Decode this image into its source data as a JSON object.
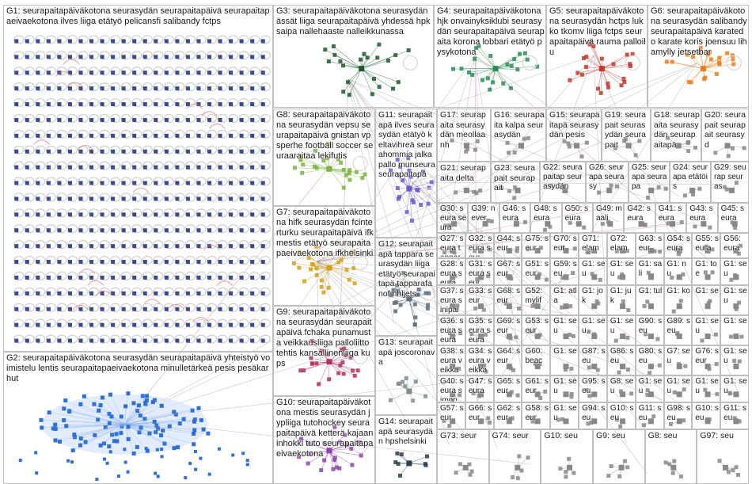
{
  "graph": {
    "groups": [
      {
        "id": "G1",
        "label": "G1: seurapaitapäiväkotona seurasydän seurapaitapäivä seurapaitapaeivaekotona ilves liiga etätyö pelicansfi salibandy fctps",
        "color": "#3a4a8c"
      },
      {
        "id": "G2",
        "label": "G2: seurapaitapäiväkotona seurasydän seurapaitapäivä yhteistyö voimistelu lentis seurapaitapaeivaekotona minulletärkeä pesis pesäkarhut",
        "color": "#2f6fd6"
      },
      {
        "id": "G3",
        "label": "G3: seurapaitapäiväkotona seurasydän ässät liiga seurapaitapäivä yhdessä hpk saipa nallehaaste nalleikkunassa",
        "color": "#1f5a2e"
      },
      {
        "id": "G4",
        "label": "G4: seurapaitapäiväkotona hjk onvainyksiklubi seurasydän seurapaitapäivä seurapaita korona lobbari etätyö pysykotona",
        "color": "#2e8b57"
      },
      {
        "id": "G5",
        "label": "G5: seurapaitapäiväkotona seurasydän hctps lukko tkomv liiga fctps seurapaitapäivä rauma palloilu",
        "color": "#c0392b"
      },
      {
        "id": "G6",
        "label": "G6: seurapaitapäiväkotona seurasydän salibandy seurapaitapäivä karatedo karate koris joensuu lihamylly jetsetbar",
        "color": "#e67e22"
      },
      {
        "id": "G7",
        "label": "G7: seurapaitapäiväkotona hifk seurasydän fcinterturku seurapaitapäivä ifk mestis etätyö seurapaitapaeivaekotona ifkhelsinki",
        "color": "#d4a017"
      },
      {
        "id": "G8",
        "label": "G8: seurapaitapäiväkotona seurasydän vepsu seurapaitapäivä gnistan vpsperhe football soccer seuraaraitaa lekifutis",
        "color": "#7cb342"
      },
      {
        "id": "G9",
        "label": "G9: seurapaitapäiväkotona seurasydän seurapaitapäivä fchaka punamusta veikkausliiga palloliitto tehtis kansallinenliiga kups",
        "color": "#b03060"
      },
      {
        "id": "G10",
        "label": "G10: seurapaitapäiväkotona mestis seurasydän jypliiga tutohockey seurapaitapäivä ketterä kajaaninhokki tuto seurapaitapaeivaekotona",
        "color": "#8e44ad"
      },
      {
        "id": "G11",
        "label": "G11: seurapaitapä ilves seurasydän etätyö keltavihreä seurahommia jalkapallo munseura seurapaitapä",
        "color": "#6a5acd"
      },
      {
        "id": "G12",
        "label": "G12: seurapaitapä tappara seurasydän liiga etätyö seurapaitapä tapparafanof nhljets",
        "color": "#5d6d7e"
      },
      {
        "id": "G13",
        "label": "G13: seurapaitapä joscoronava",
        "color": "#7f8c8d"
      },
      {
        "id": "G14",
        "label": "G14: seurapaitapä seurasydän hpshelsinki",
        "color": "#2c3e50"
      },
      {
        "id": "G15",
        "label": "G15: seurapaitapä seurasydän pesis",
        "color": "#888888"
      },
      {
        "id": "G16",
        "label": "G16: seurapaita kalpa seurasydän",
        "color": "#888888"
      },
      {
        "id": "G17",
        "label": "G17: seurapaita seurasydän meollaanh",
        "color": "#888888"
      },
      {
        "id": "G18",
        "label": "G18: seurapaita seurasydän seurapaitapä",
        "color": "#888888"
      },
      {
        "id": "G19",
        "label": "G19: seurapait seurasydän seurapait",
        "color": "#888888"
      },
      {
        "id": "G20",
        "label": "G20: seurapait seurapait seurasyd",
        "color": "#888888"
      },
      {
        "id": "G21",
        "label": "G21: seurapaita delta",
        "color": "#888888"
      },
      {
        "id": "G22",
        "label": "G22: seurapaitap seurasydän",
        "color": "#888888"
      },
      {
        "id": "G23",
        "label": "G23: seurapait seurapait",
        "color": "#888888"
      },
      {
        "id": "G24",
        "label": "G24: seurapa etätöis",
        "color": "#888888"
      },
      {
        "id": "G25",
        "label": "G25: seurapa seurapa",
        "color": "#888888"
      },
      {
        "id": "G26",
        "label": "G26: seurapa seurasy",
        "color": "#888888"
      },
      {
        "id": "G27",
        "label": "G27: seura tappara seura",
        "color": "#888888"
      },
      {
        "id": "G28",
        "label": "G28: seura seura",
        "color": "#888888"
      },
      {
        "id": "G29",
        "label": "G29: seurap seuras",
        "color": "#888888"
      },
      {
        "id": "G30",
        "label": "G30: seura seura",
        "color": "#888888"
      },
      {
        "id": "G31",
        "label": "G31: seura seur",
        "color": "#888888"
      },
      {
        "id": "G32",
        "label": "G32: seura seur",
        "color": "#888888"
      },
      {
        "id": "G33",
        "label": "G33: seur",
        "color": "#888888"
      },
      {
        "id": "G34",
        "label": "G34: seura veikka",
        "color": "#888888"
      },
      {
        "id": "G35",
        "label": "G35: seura seura",
        "color": "#888888"
      },
      {
        "id": "G36",
        "label": "G36: seura seura",
        "color": "#888888"
      },
      {
        "id": "G37",
        "label": "G37: seura sinipai",
        "color": "#888888"
      },
      {
        "id": "G38",
        "label": "G38: seura veikka",
        "color": "#888888"
      },
      {
        "id": "G39",
        "label": "G39: never",
        "color": "#888888"
      },
      {
        "id": "G40",
        "label": "G40: seura simon",
        "color": "#888888"
      },
      {
        "id": "G41",
        "label": "G41: seura",
        "color": "#888888"
      },
      {
        "id": "G42",
        "label": "G42: seura",
        "color": "#888888"
      },
      {
        "id": "G43",
        "label": "G43: seura",
        "color": "#888888"
      },
      {
        "id": "G44",
        "label": "G44: seur",
        "color": "#888888"
      },
      {
        "id": "G45",
        "label": "G45: seura",
        "color": "#888888"
      },
      {
        "id": "G46",
        "label": "G46: seura",
        "color": "#888888"
      },
      {
        "id": "G47",
        "label": "G47: seura",
        "color": "#888888"
      },
      {
        "id": "G48",
        "label": "G48: seura",
        "color": "#888888"
      },
      {
        "id": "G49",
        "label": "G49: maali",
        "color": "#888888"
      },
      {
        "id": "G50",
        "label": "G50: seura",
        "color": "#888888"
      },
      {
        "id": "G51",
        "label": "G51: seur",
        "color": "#888888"
      },
      {
        "id": "G52",
        "label": "G52: mylif",
        "color": "#888888"
      },
      {
        "id": "G53",
        "label": "G53: seur",
        "color": "#888888"
      },
      {
        "id": "G54",
        "label": "G54: seura",
        "color": "#888888"
      },
      {
        "id": "G55",
        "label": "G55: seura",
        "color": "#888888"
      },
      {
        "id": "G56",
        "label": "G56: eura",
        "color": "#888888"
      },
      {
        "id": "G57",
        "label": "G57: seur",
        "color": "#888888"
      },
      {
        "id": "G58",
        "label": "G58: seur",
        "color": "#888888"
      },
      {
        "id": "G59",
        "label": "G59: seu",
        "color": "#888888"
      },
      {
        "id": "G60",
        "label": "G60: beac",
        "color": "#888888"
      },
      {
        "id": "G61",
        "label": "G61: seur",
        "color": "#888888"
      },
      {
        "id": "G62",
        "label": "G62: seur",
        "color": "#888888"
      },
      {
        "id": "G63",
        "label": "G63: seur",
        "color": "#888888"
      },
      {
        "id": "G64",
        "label": "G64: seur",
        "color": "#888888"
      },
      {
        "id": "G65",
        "label": "G65: seur",
        "color": "#888888"
      },
      {
        "id": "G66",
        "label": "G66: seur",
        "color": "#888888"
      },
      {
        "id": "G67",
        "label": "G67: seur",
        "color": "#888888"
      },
      {
        "id": "G68",
        "label": "G68: seur",
        "color": "#888888"
      },
      {
        "id": "G69",
        "label": "G69: seur",
        "color": "#888888"
      },
      {
        "id": "G70",
        "label": "G70: seur",
        "color": "#888888"
      },
      {
        "id": "G71",
        "label": "G71: elam",
        "color": "#888888"
      },
      {
        "id": "G72",
        "label": "G72: elam",
        "color": "#888888"
      },
      {
        "id": "G73",
        "label": "G73: seur",
        "color": "#888888"
      },
      {
        "id": "G74",
        "label": "G74: seur",
        "color": "#888888"
      },
      {
        "id": "G75",
        "label": "G75: seur",
        "color": "#888888"
      },
      {
        "id": "G76",
        "label": "G76: seur",
        "color": "#888888"
      },
      {
        "id": "G77",
        "label": "G7: seu",
        "color": "#888888"
      },
      {
        "id": "G80",
        "label": "G80: seu",
        "color": "#888888"
      },
      {
        "id": "G81",
        "label": "G8: seu",
        "color": "#888888"
      },
      {
        "id": "G86",
        "label": "G86: seu",
        "color": "#888888"
      },
      {
        "id": "G87",
        "label": "G87: seu",
        "color": "#888888"
      },
      {
        "id": "G89",
        "label": "G89: seu",
        "color": "#888888"
      },
      {
        "id": "G90",
        "label": "G90: seu",
        "color": "#888888"
      },
      {
        "id": "G94",
        "label": "G94: seu",
        "color": "#888888"
      },
      {
        "id": "G95",
        "label": "G95: seu",
        "color": "#888888"
      },
      {
        "id": "G97",
        "label": "G97: seu",
        "color": "#888888"
      },
      {
        "id": "G98",
        "label": "G98: seu",
        "color": "#888888"
      },
      {
        "id": "G100",
        "label": "G10: seu",
        "color": "#888888"
      },
      {
        "id": "G101",
        "label": "G1: seu",
        "color": "#888888"
      },
      {
        "id": "G102",
        "label": "G1: atla",
        "color": "#888888"
      },
      {
        "id": "G103",
        "label": "G1: jok",
        "color": "#888888"
      },
      {
        "id": "G104",
        "label": "G1: seu",
        "color": "#888888"
      },
      {
        "id": "G105",
        "label": "G1: sali",
        "color": "#888888"
      },
      {
        "id": "G106",
        "label": "G1: nu",
        "color": "#888888"
      },
      {
        "id": "G107",
        "label": "G1: toe",
        "color": "#888888"
      },
      {
        "id": "G108",
        "label": "G1: seu",
        "color": "#888888"
      },
      {
        "id": "G109",
        "label": "G1: juk",
        "color": "#888888"
      },
      {
        "id": "G110",
        "label": "G1: tul",
        "color": "#888888"
      },
      {
        "id": "G111",
        "label": "G1: ko",
        "color": "#888888"
      },
      {
        "id": "G112",
        "label": "G1: se",
        "color": "#888888"
      },
      {
        "id": "G113",
        "label": "G1: seu",
        "color": "#888888"
      },
      {
        "id": "G114",
        "label": "G1: seu",
        "color": "#888888"
      },
      {
        "id": "G115",
        "label": "G1: seu",
        "color": "#888888"
      },
      {
        "id": "G116",
        "label": "G1: seu",
        "color": "#888888"
      },
      {
        "id": "G117",
        "label": "G1: seu",
        "color": "#888888"
      },
      {
        "id": "G118",
        "label": "G1: se",
        "color": "#888888"
      },
      {
        "id": "G119",
        "label": "G1: se",
        "color": "#888888"
      },
      {
        "id": "G120",
        "label": "G1: seu",
        "color": "#888888"
      },
      {
        "id": "G121",
        "label": "G1: seu",
        "color": "#888888"
      },
      {
        "id": "G122",
        "label": "G1: seu",
        "color": "#888888"
      },
      {
        "id": "G123",
        "label": "G1: seu",
        "color": "#888888"
      },
      {
        "id": "G124",
        "label": "G1: seu",
        "color": "#888888"
      },
      {
        "id": "G125",
        "label": "G1: seu",
        "color": "#888888"
      },
      {
        "id": "G126",
        "label": "G1: seu",
        "color": "#888888"
      },
      {
        "id": "G127",
        "label": "G10: seu",
        "color": "#888888"
      },
      {
        "id": "G128",
        "label": "G11: seu",
        "color": "#888888"
      },
      {
        "id": "G129",
        "label": "G11: seu",
        "color": "#888888"
      },
      {
        "id": "G130",
        "label": "G10: seu",
        "color": "#888888"
      },
      {
        "id": "G131",
        "label": "G9: seu",
        "color": "#888888"
      },
      {
        "id": "G132",
        "label": "G8: seu",
        "color": "#888888"
      }
    ]
  }
}
